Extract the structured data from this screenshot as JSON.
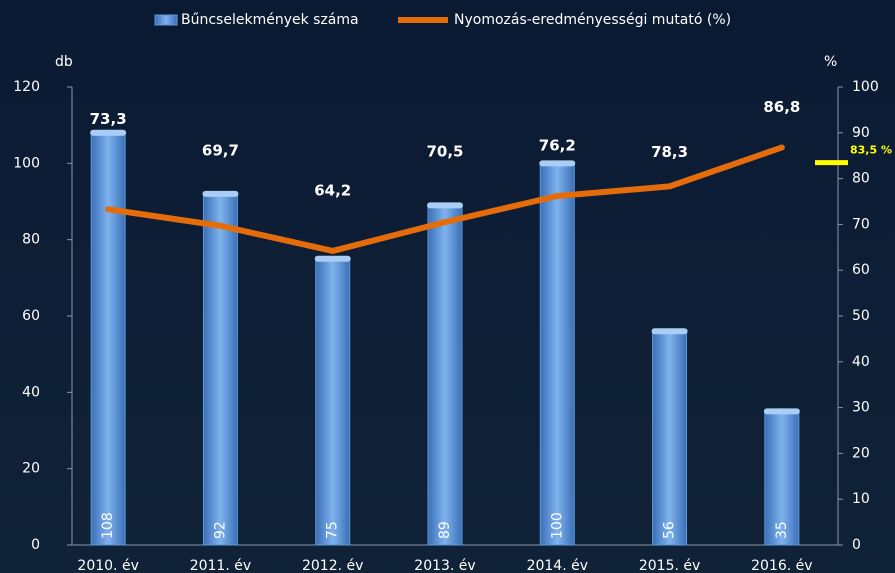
{
  "chart_data": {
    "type": "bar",
    "categories": [
      "2010. év",
      "2011. év",
      "2012. év",
      "2013. év",
      "2014. év",
      "2015. év",
      "2016. év"
    ],
    "series": [
      {
        "name": "Bűncselekmények száma",
        "color": "#5b9bd5",
        "values": [
          108,
          92,
          75,
          89,
          100,
          56,
          35
        ]
      },
      {
        "name": "Nyomozás-eredményességi mutató (%)",
        "type": "line",
        "axis": "y2",
        "color": "#e46c0a",
        "values": [
          73.3,
          69.7,
          64.2,
          70.5,
          76.2,
          78.3,
          86.8
        ],
        "value_labels": [
          "73,3",
          "69,7",
          "64,2",
          "70,5",
          "76,2",
          "78,3",
          "86,8"
        ]
      }
    ],
    "ylabel": "db",
    "y2label": "%",
    "ylim": [
      0,
      120
    ],
    "yticks": [
      0,
      20,
      40,
      60,
      80,
      100,
      120
    ],
    "y2lim": [
      0,
      100
    ],
    "y2ticks": [
      0,
      10,
      20,
      30,
      40,
      50,
      60,
      70,
      80,
      90,
      100
    ],
    "annotations": [
      {
        "text": "83,5 %",
        "value": 83.5,
        "axis": "y2",
        "color": "#ffff00"
      }
    ]
  }
}
